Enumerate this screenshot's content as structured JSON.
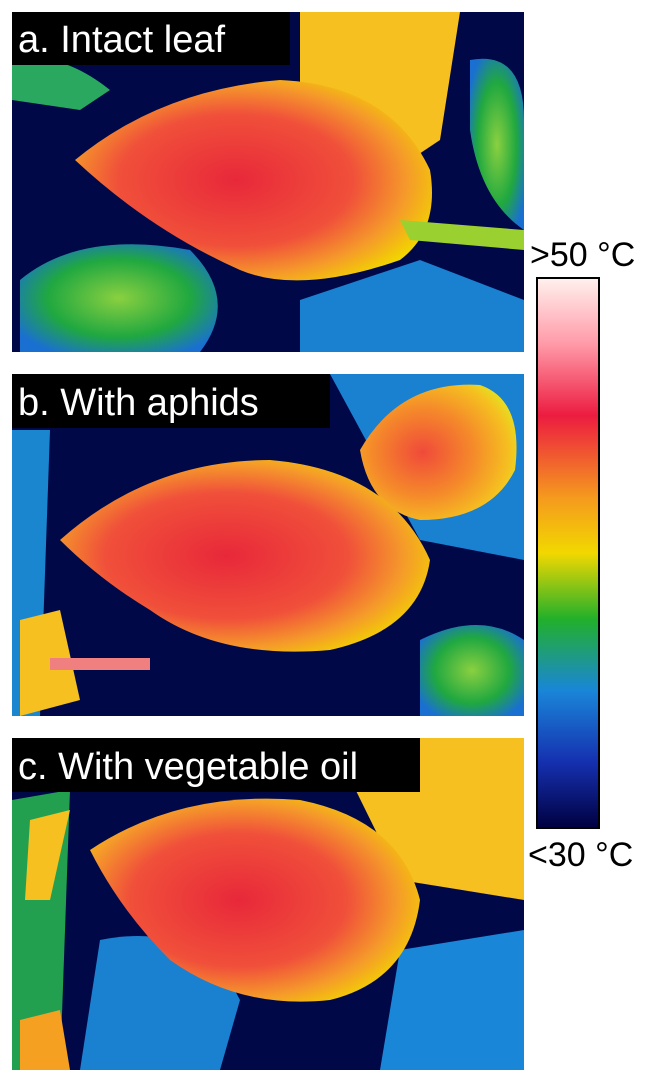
{
  "panels": [
    {
      "label": "a. Intact leaf"
    },
    {
      "label": "b. With aphids"
    },
    {
      "label": "c. With vegetable oil"
    }
  ],
  "colorbar": {
    "top_label": ">50 °C",
    "bottom_label": "<30 °C"
  }
}
